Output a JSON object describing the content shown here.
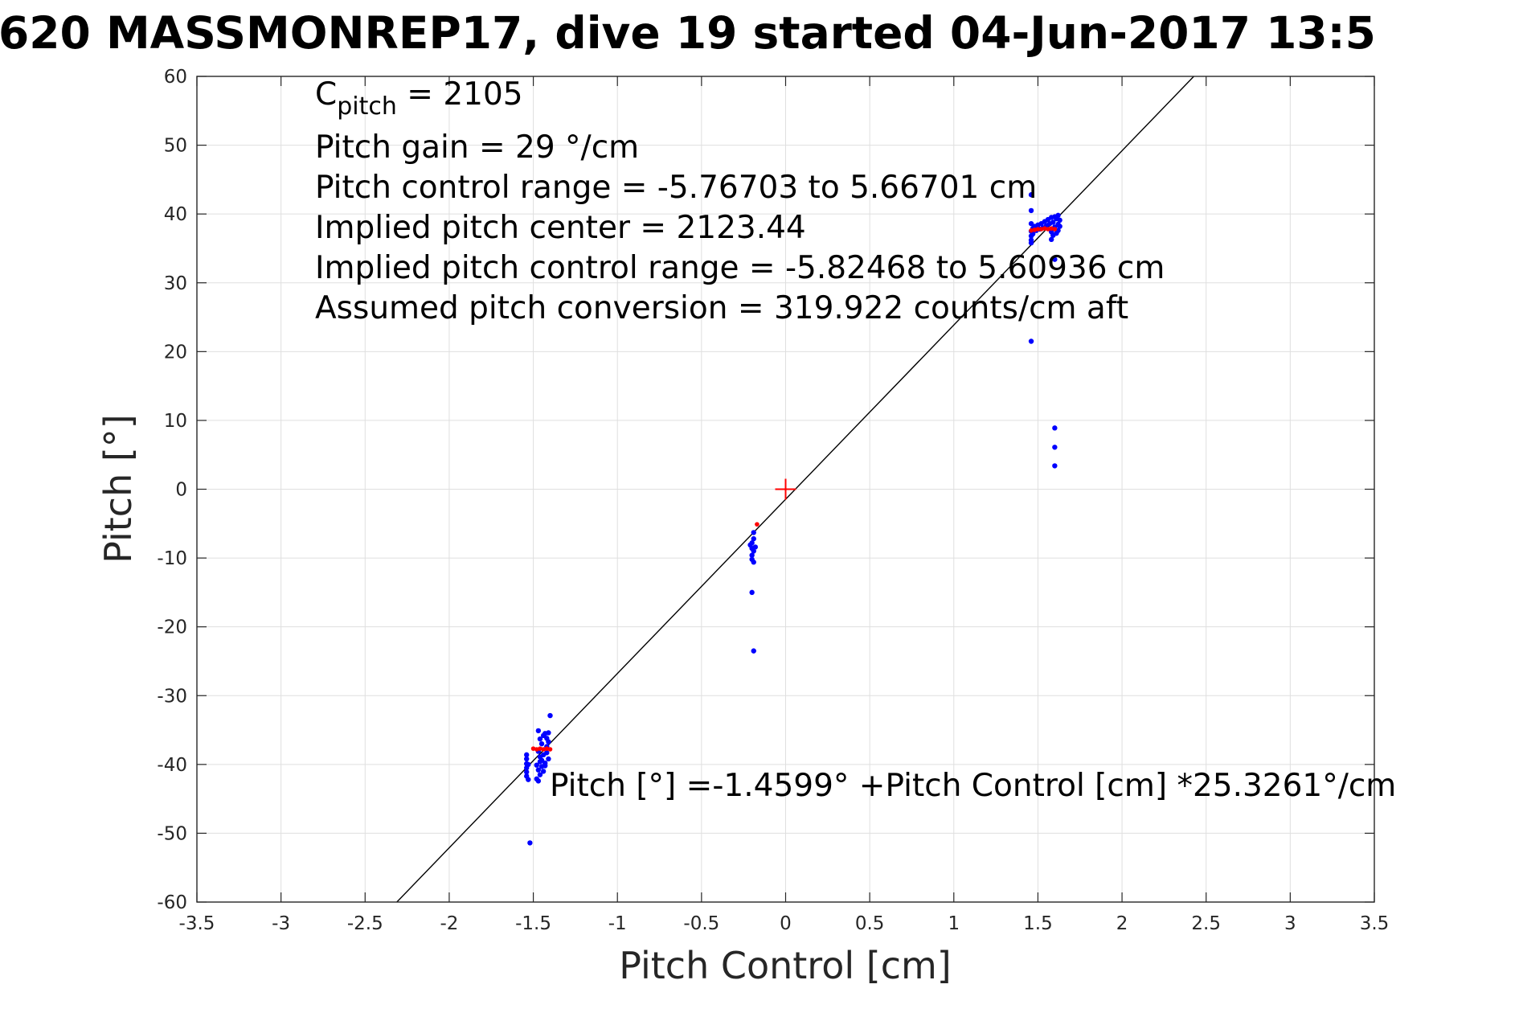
{
  "chart_data": {
    "type": "scatter",
    "title": "620 MASSMONREP17, dive 19 started 04-Jun-2017 13:5",
    "xlabel": "Pitch Control [cm]",
    "ylabel": "Pitch [°]",
    "xlim": [
      -3.5,
      3.5
    ],
    "ylim": [
      -60,
      60
    ],
    "grid": true,
    "xticks": [
      "-3.5",
      "-3",
      "-2.5",
      "-2",
      "-1.5",
      "-1",
      "-0.5",
      "0",
      "0.5",
      "1",
      "1.5",
      "2",
      "2.5",
      "3",
      "3.5"
    ],
    "yticks": [
      "60",
      "50",
      "40",
      "30",
      "20",
      "10",
      "0",
      "-10",
      "-20",
      "-30",
      "-40",
      "-50",
      "-60"
    ],
    "annotations": {
      "c_pitch_base": "C",
      "c_pitch_sub": "pitch",
      "c_pitch_value": " = 2105",
      "pitch_gain": "Pitch gain = 29 °/cm",
      "pitch_control_range": "Pitch control range = -5.76703 to 5.66701 cm",
      "implied_pitch_center": "Implied pitch center = 2123.44",
      "implied_control_range": "Implied pitch control range = -5.82468 to 5.60936 cm",
      "assumed_conversion": "Assumed pitch conversion = 319.922 counts/cm aft",
      "fit_equation": "Pitch [°] =-1.4599° +Pitch Control [cm] *25.3261°/cm"
    },
    "fit_line": {
      "intercept": -1.4599,
      "slope": 25.3261,
      "color": "#000000"
    },
    "center_marker": {
      "x": 0,
      "y": 0,
      "color": "#ff0000"
    },
    "series": [
      {
        "color": "#0000ff",
        "points": [
          [
            1.46,
            42.8
          ],
          [
            1.46,
            40.5
          ],
          [
            1.46,
            38.6
          ],
          [
            1.46,
            37.5
          ],
          [
            1.46,
            36.8
          ],
          [
            1.46,
            36.2
          ],
          [
            1.46,
            35.8
          ],
          [
            1.47,
            37.9
          ],
          [
            1.47,
            37.1
          ],
          [
            1.48,
            38.2
          ],
          [
            1.49,
            37.6
          ],
          [
            1.5,
            38.4
          ],
          [
            1.51,
            37.8
          ],
          [
            1.52,
            38.6
          ],
          [
            1.53,
            38.0
          ],
          [
            1.54,
            38.9
          ],
          [
            1.55,
            38.3
          ],
          [
            1.56,
            39.2
          ],
          [
            1.57,
            38.6
          ],
          [
            1.58,
            39.5
          ],
          [
            1.58,
            37.4
          ],
          [
            1.59,
            38.8
          ],
          [
            1.59,
            36.9
          ],
          [
            1.6,
            39.6
          ],
          [
            1.6,
            38.1
          ],
          [
            1.61,
            39.3
          ],
          [
            1.61,
            37.2
          ],
          [
            1.62,
            39.8
          ],
          [
            1.62,
            38.5
          ],
          [
            1.62,
            37.6
          ],
          [
            1.63,
            39.1
          ],
          [
            1.63,
            38.2
          ],
          [
            1.58,
            36.3
          ],
          [
            1.6,
            33.4
          ],
          [
            1.46,
            21.5
          ],
          [
            1.6,
            8.9
          ],
          [
            1.6,
            6.1
          ],
          [
            1.6,
            3.4
          ],
          [
            -0.19,
            -6.3
          ],
          [
            -0.19,
            -7.2
          ],
          [
            -0.2,
            -7.8
          ],
          [
            -0.21,
            -8.1
          ],
          [
            -0.2,
            -8.6
          ],
          [
            -0.19,
            -9.0
          ],
          [
            -0.2,
            -9.6
          ],
          [
            -0.2,
            -10.2
          ],
          [
            -0.19,
            -10.6
          ],
          [
            -0.18,
            -8.4
          ],
          [
            -0.2,
            -15.0
          ],
          [
            -0.19,
            -23.5
          ],
          [
            -1.47,
            -35.1
          ],
          [
            -1.46,
            -36.3
          ],
          [
            -1.45,
            -37.0
          ],
          [
            -1.44,
            -35.8
          ],
          [
            -1.43,
            -35.5
          ],
          [
            -1.42,
            -36.2
          ],
          [
            -1.41,
            -35.4
          ],
          [
            -1.4,
            -32.9
          ],
          [
            -1.47,
            -38.1
          ],
          [
            -1.46,
            -38.9
          ],
          [
            -1.45,
            -39.4
          ],
          [
            -1.44,
            -38.6
          ],
          [
            -1.43,
            -39.8
          ],
          [
            -1.42,
            -38.3
          ],
          [
            -1.41,
            -39.2
          ],
          [
            -1.48,
            -40.1
          ],
          [
            -1.47,
            -40.8
          ],
          [
            -1.46,
            -41.5
          ],
          [
            -1.45,
            -40.3
          ],
          [
            -1.44,
            -41.0
          ],
          [
            -1.43,
            -40.2
          ],
          [
            -1.48,
            -42.1
          ],
          [
            -1.47,
            -42.4
          ],
          [
            -1.46,
            -39.6
          ],
          [
            -1.54,
            -38.6
          ],
          [
            -1.54,
            -39.2
          ],
          [
            -1.54,
            -39.9
          ],
          [
            -1.54,
            -40.5
          ],
          [
            -1.54,
            -41.1
          ],
          [
            -1.54,
            -41.7
          ],
          [
            -1.53,
            -42.2
          ],
          [
            -1.53,
            -40.0
          ],
          [
            -1.42,
            -37.4
          ],
          [
            -1.41,
            -36.7
          ],
          [
            -1.52,
            -51.4
          ]
        ]
      },
      {
        "color": "#ff0000",
        "points": [
          [
            1.46,
            37.6
          ],
          [
            1.48,
            37.7
          ],
          [
            1.5,
            37.8
          ],
          [
            1.52,
            37.8
          ],
          [
            1.54,
            37.9
          ],
          [
            1.56,
            37.8
          ],
          [
            1.58,
            37.9
          ],
          [
            1.6,
            37.8
          ],
          [
            -0.17,
            -5.1
          ],
          [
            -1.5,
            -37.7
          ],
          [
            -1.48,
            -37.8
          ],
          [
            -1.46,
            -37.7
          ],
          [
            -1.44,
            -37.8
          ],
          [
            -1.42,
            -37.7
          ],
          [
            -1.4,
            -37.8
          ]
        ]
      }
    ]
  }
}
